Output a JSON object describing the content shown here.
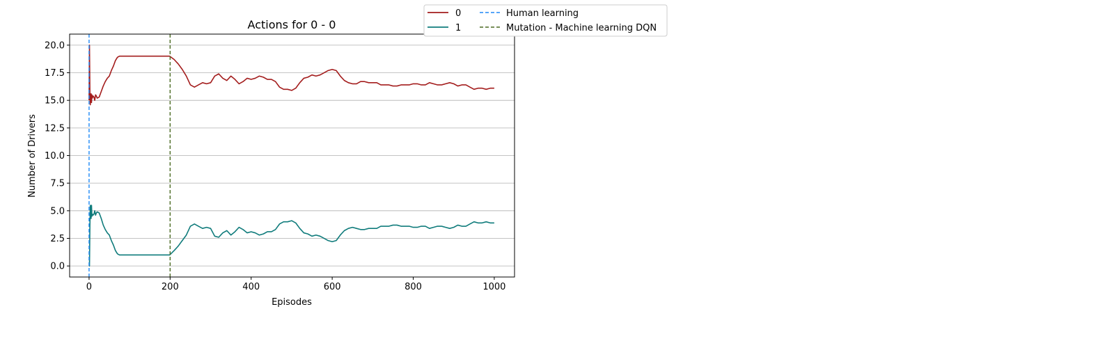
{
  "chart_data": {
    "type": "line",
    "title": "Actions for 0 - 0",
    "xlabel": "Episodes",
    "ylabel": "Number of Drivers",
    "xlim": [
      -48,
      1050
    ],
    "ylim": [
      -1.0,
      21.0
    ],
    "xticks": [
      0,
      200,
      400,
      600,
      800,
      1000
    ],
    "xtick_labels": [
      "0",
      "200",
      "400",
      "600",
      "800",
      "1000"
    ],
    "yticks": [
      0.0,
      2.5,
      5.0,
      7.5,
      10.0,
      12.5,
      15.0,
      17.5,
      20.0
    ],
    "ytick_labels": [
      "0.0",
      "2.5",
      "5.0",
      "7.5",
      "10.0",
      "12.5",
      "15.0",
      "17.5",
      "20.0"
    ],
    "grid": "horizontal",
    "legend_placement": "above top-right, outside plot",
    "series": [
      {
        "name": "0",
        "color": "#a31c1c",
        "x": [
          0,
          1,
          2,
          3,
          4,
          5,
          6,
          7,
          8,
          10,
          12,
          14,
          16,
          18,
          20,
          25,
          30,
          35,
          40,
          45,
          50,
          55,
          60,
          65,
          70,
          75,
          80,
          90,
          100,
          150,
          199,
          210,
          220,
          230,
          240,
          250,
          260,
          270,
          280,
          290,
          300,
          310,
          320,
          330,
          340,
          350,
          360,
          370,
          380,
          390,
          400,
          410,
          420,
          430,
          440,
          450,
          460,
          470,
          480,
          490,
          500,
          510,
          520,
          530,
          540,
          550,
          560,
          570,
          580,
          590,
          600,
          610,
          620,
          630,
          640,
          650,
          660,
          670,
          680,
          690,
          700,
          710,
          720,
          730,
          740,
          750,
          760,
          770,
          780,
          790,
          800,
          810,
          820,
          830,
          840,
          850,
          860,
          870,
          880,
          890,
          900,
          910,
          920,
          930,
          940,
          950,
          960,
          970,
          980,
          990,
          1000
        ],
        "y": [
          15.0,
          20.0,
          15.8,
          14.6,
          15.3,
          15.6,
          14.8,
          15.5,
          15.2,
          15.4,
          15.3,
          15.0,
          15.5,
          15.4,
          15.2,
          15.3,
          15.8,
          16.3,
          16.7,
          17.0,
          17.2,
          17.7,
          18.1,
          18.6,
          18.9,
          19.0,
          19.0,
          19.0,
          19.0,
          19.0,
          19.0,
          18.7,
          18.3,
          17.8,
          17.2,
          16.4,
          16.2,
          16.4,
          16.6,
          16.5,
          16.6,
          17.2,
          17.4,
          17.0,
          16.8,
          17.2,
          16.9,
          16.5,
          16.7,
          17.0,
          16.9,
          17.0,
          17.2,
          17.1,
          16.9,
          16.9,
          16.7,
          16.2,
          16.0,
          16.0,
          15.9,
          16.1,
          16.6,
          17.0,
          17.1,
          17.3,
          17.2,
          17.3,
          17.5,
          17.7,
          17.8,
          17.7,
          17.2,
          16.8,
          16.6,
          16.5,
          16.5,
          16.7,
          16.7,
          16.6,
          16.6,
          16.6,
          16.4,
          16.4,
          16.4,
          16.3,
          16.3,
          16.4,
          16.4,
          16.4,
          16.5,
          16.5,
          16.4,
          16.4,
          16.6,
          16.5,
          16.4,
          16.4,
          16.5,
          16.6,
          16.5,
          16.3,
          16.4,
          16.4,
          16.2,
          16.0,
          16.1,
          16.1,
          16.0,
          16.1,
          16.1
        ]
      },
      {
        "name": "1",
        "color": "#0f7b7b",
        "x": [
          0,
          1,
          2,
          3,
          4,
          5,
          6,
          7,
          8,
          10,
          12,
          14,
          16,
          18,
          20,
          25,
          30,
          35,
          40,
          45,
          50,
          55,
          60,
          65,
          70,
          75,
          80,
          90,
          100,
          150,
          199,
          210,
          220,
          230,
          240,
          250,
          260,
          270,
          280,
          290,
          300,
          310,
          320,
          330,
          340,
          350,
          360,
          370,
          380,
          390,
          400,
          410,
          420,
          430,
          440,
          450,
          460,
          470,
          480,
          490,
          500,
          510,
          520,
          530,
          540,
          550,
          560,
          570,
          580,
          590,
          600,
          610,
          620,
          630,
          640,
          650,
          660,
          670,
          680,
          690,
          700,
          710,
          720,
          730,
          740,
          750,
          760,
          770,
          780,
          790,
          800,
          810,
          820,
          830,
          840,
          850,
          860,
          870,
          880,
          890,
          900,
          910,
          920,
          930,
          940,
          950,
          960,
          970,
          980,
          990,
          1000
        ],
        "y": [
          0.0,
          0.0,
          3.6,
          5.5,
          4.6,
          4.3,
          5.5,
          4.5,
          4.7,
          4.6,
          4.7,
          5.0,
          4.6,
          4.8,
          4.9,
          4.8,
          4.3,
          3.7,
          3.3,
          3.0,
          2.8,
          2.3,
          1.9,
          1.4,
          1.1,
          1.0,
          1.0,
          1.0,
          1.0,
          1.0,
          1.0,
          1.4,
          1.8,
          2.3,
          2.8,
          3.6,
          3.8,
          3.6,
          3.4,
          3.5,
          3.4,
          2.7,
          2.6,
          3.0,
          3.2,
          2.8,
          3.1,
          3.5,
          3.3,
          3.0,
          3.1,
          3.0,
          2.8,
          2.9,
          3.1,
          3.1,
          3.3,
          3.8,
          4.0,
          4.0,
          4.1,
          3.9,
          3.4,
          3.0,
          2.9,
          2.7,
          2.8,
          2.7,
          2.5,
          2.3,
          2.2,
          2.3,
          2.8,
          3.2,
          3.4,
          3.5,
          3.4,
          3.3,
          3.3,
          3.4,
          3.4,
          3.4,
          3.6,
          3.6,
          3.6,
          3.7,
          3.7,
          3.6,
          3.6,
          3.6,
          3.5,
          3.5,
          3.6,
          3.6,
          3.4,
          3.5,
          3.6,
          3.6,
          3.5,
          3.4,
          3.5,
          3.7,
          3.6,
          3.6,
          3.8,
          4.0,
          3.9,
          3.9,
          4.0,
          3.9,
          3.9
        ]
      }
    ],
    "vlines": [
      {
        "name": "Human learning",
        "x": 0,
        "color": "#1e88f5",
        "style": "dashed"
      },
      {
        "name": "Mutation - Machine learning DQN",
        "x": 200,
        "color": "#4a6a22",
        "style": "dashed"
      }
    ]
  }
}
